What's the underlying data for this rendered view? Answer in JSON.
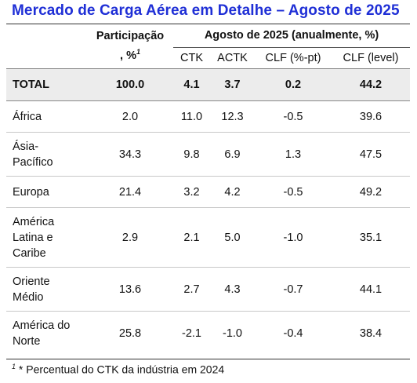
{
  "title": "Mercado de Carga Aérea em Detalhe – Agosto de 2025",
  "header": {
    "participation": "Participação",
    "participation_unit": ", %",
    "participation_sup": "1",
    "group": "Agosto de 2025 (anualmente, %)",
    "columns": [
      "CTK",
      "ACTK",
      "CLF (%-pt)",
      "CLF (level)"
    ]
  },
  "total": {
    "region": "TOTAL",
    "values": [
      "100.0",
      "4.1",
      "3.7",
      "0.2",
      "44.2"
    ]
  },
  "rows": [
    {
      "region_lines": [
        "África"
      ],
      "values": [
        "2.0",
        "11.0",
        "12.3",
        "-0.5",
        "39.6"
      ]
    },
    {
      "region_lines": [
        "Ásia-",
        "Pacífico"
      ],
      "values": [
        "34.3",
        "9.8",
        "6.9",
        "1.3",
        "47.5"
      ]
    },
    {
      "region_lines": [
        "Europa"
      ],
      "values": [
        "21.4",
        "3.2",
        "4.2",
        "-0.5",
        "49.2"
      ]
    },
    {
      "region_lines": [
        "América",
        "Latina e",
        "Caribe"
      ],
      "values": [
        "2.9",
        "2.1",
        "5.0",
        "-1.0",
        "35.1"
      ]
    },
    {
      "region_lines": [
        "Oriente",
        "Médio"
      ],
      "values": [
        "13.6",
        "2.7",
        "4.3",
        "-0.7",
        "44.1"
      ]
    },
    {
      "region_lines": [
        "América do",
        "Norte"
      ],
      "values": [
        "25.8",
        "-2.1",
        "-1.0",
        "-0.4",
        "38.4"
      ]
    }
  ],
  "footnote": {
    "sup": "1",
    "text": " * Percentual do CTK da indústria em 2024"
  }
}
